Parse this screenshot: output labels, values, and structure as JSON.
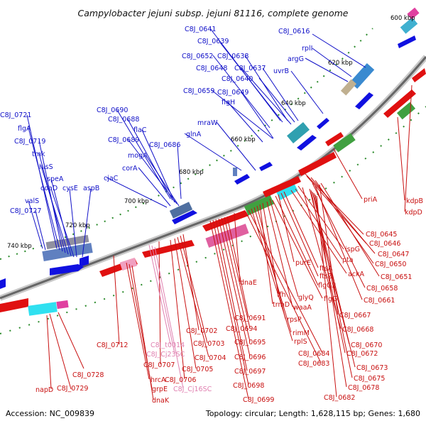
{
  "title": "Campylobacter jejuni subsp. jejuni 81116, complete genome",
  "footer": {
    "accession": "Accession: NC_009839",
    "summary": "Topology: circular; Length: 1,628,115 bp; Genes: 1,680"
  },
  "ticks": [
    "600 kbp",
    "620 kbp",
    "640 kbp",
    "660 kbp",
    "680 kbp",
    "700 kbp",
    "720 kbp",
    "740 kbp"
  ],
  "labels_forward": [
    "C8J_0641",
    "C8J_0639",
    "C8J_0652",
    "C8J_0638",
    "C8J_0648",
    "C8J_0637",
    "C8J_0640",
    "C8J_0659",
    "C8J_0649",
    "flgH",
    "C8J_0616",
    "rplI",
    "argG",
    "uvrB",
    "C8J_0690",
    "C8J_0688",
    "flaC",
    "C8J_0689",
    "mogA",
    "C8J_0686",
    "corA",
    "glnA",
    "mraW",
    "cjaC",
    "C8J_0721",
    "flgA",
    "C8J_0719",
    "tmk",
    "hisS",
    "speA",
    "coaD",
    "cysE",
    "aspB",
    "valS",
    "C8J_0727"
  ],
  "labels_reverse": [
    "priA",
    "kdpB",
    "kdpD",
    "C8J_0645",
    "C8J_0646",
    "C8J_0647",
    "C8J_0650",
    "C8J_0651",
    "ispG",
    "pta",
    "ackA",
    "ftsA",
    "ftsZ",
    "purE",
    "flgG2",
    "C8J_0658",
    "C8J_0661",
    "glyQ",
    "flgG",
    "waaA",
    "C8J_0667",
    "ffh",
    "trmD",
    "rpsP",
    "C8J_0668",
    "rimM",
    "C8J_0670",
    "rplS",
    "C8J_0672",
    "C8J_0684",
    "C8J_0673",
    "C8J_0683",
    "C8J_0675",
    "C8J_0678",
    "C8J_0682",
    "dnaE",
    "C8J_0691",
    "C8J_0694",
    "C8J_0695",
    "C8J_0696",
    "C8J_0697",
    "C8J_0698",
    "C8J_0699",
    "C8J_0702",
    "C8J_0703",
    "C8J_0704",
    "C8J_0705",
    "C8J_0706",
    "C8J_0707",
    "C8J_0712",
    "hrcA",
    "grpE",
    "dnaK",
    "C8J_0728",
    "C8J_0729",
    "napD"
  ],
  "labels_rna": [
    "C8J_t0014",
    "C8J_Cj23SC",
    "C8J_Cj16SC"
  ],
  "colors": {
    "forward": "#1010c8",
    "reverse": "#c81010",
    "rna": "#e080b0",
    "backbone": "#666666",
    "tick_dots": "#1f7a1f"
  }
}
